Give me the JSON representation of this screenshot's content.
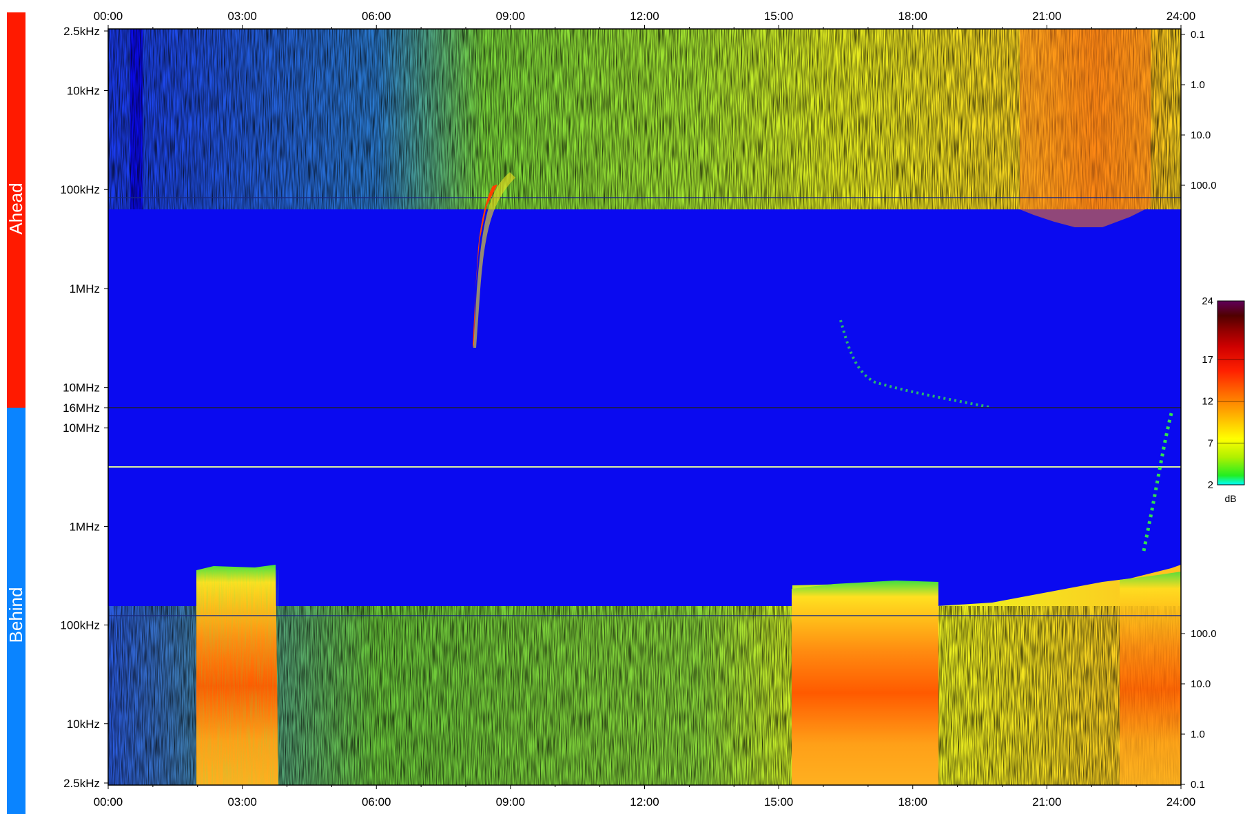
{
  "chart_data": {
    "type": "heatmap",
    "title": "",
    "x_ticks": [
      "00:00",
      "03:00",
      "06:00",
      "09:00",
      "12:00",
      "15:00",
      "18:00",
      "21:00",
      "24:00"
    ],
    "xlim": [
      "00:00",
      "24:00"
    ],
    "panels": [
      {
        "name": "Ahead",
        "color": "#ff1a00",
        "y_scale": "log",
        "y_ticks": [
          "2.5kHz",
          "10kHz",
          "100kHz",
          "1MHz",
          "10MHz",
          "16MHz"
        ],
        "right_ticks": [
          "0.1",
          "1.0",
          "10.0",
          "100.0"
        ]
      },
      {
        "name": "Behind",
        "color": "#0a84ff",
        "y_scale": "log",
        "y_ticks": [
          "10MHz",
          "1MHz",
          "100kHz",
          "10kHz",
          "2.5kHz"
        ],
        "right_ticks": [
          "100.0",
          "10.0",
          "1.0",
          "0.1"
        ]
      }
    ],
    "colorbar": {
      "unit": "dB",
      "ticks": [
        "24",
        "17",
        "12",
        "7",
        "2"
      ],
      "range": [
        2,
        24
      ]
    },
    "background_color": "#0a0af0"
  }
}
